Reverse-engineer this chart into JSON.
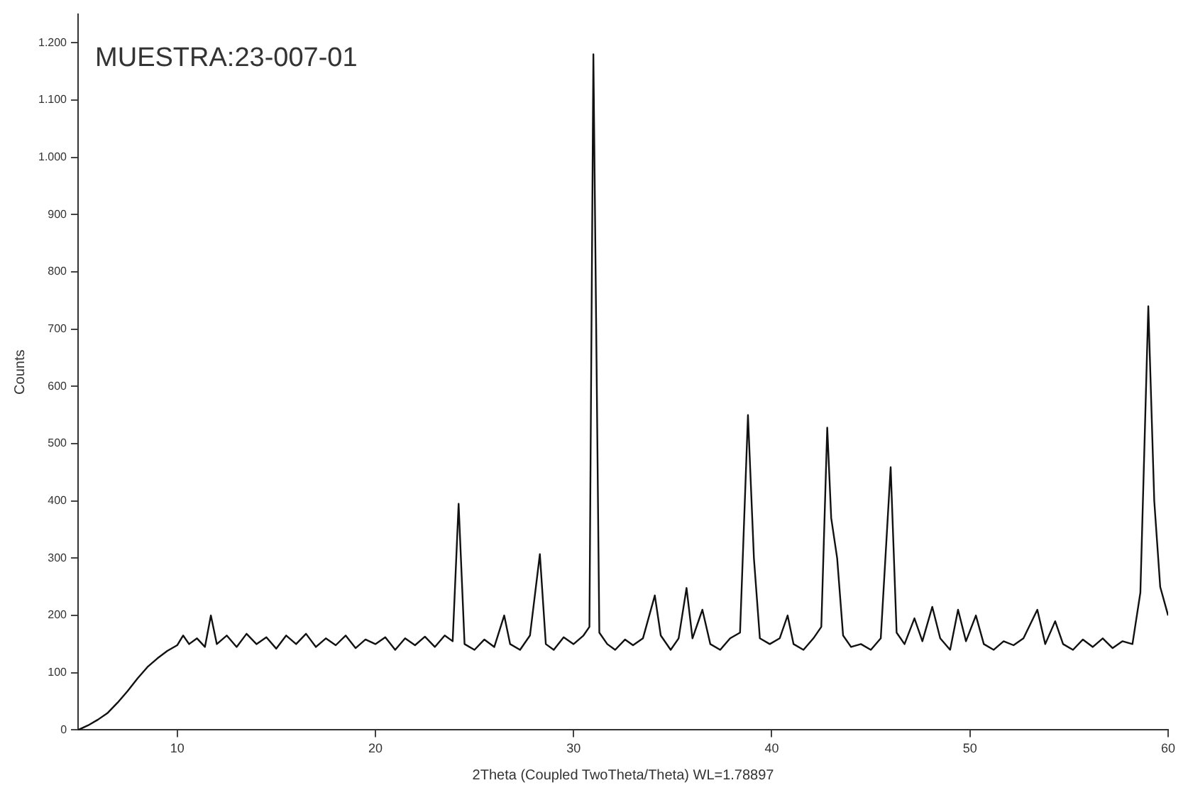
{
  "chart_data": {
    "type": "line",
    "xlabel": "2Theta (Coupled TwoTheta/Theta) WL=1.78897",
    "ylabel": "Counts",
    "annotations": [
      "MUESTRA:23-007-01"
    ],
    "xlim": [
      5,
      60
    ],
    "xticks": [
      10,
      20,
      30,
      40,
      50,
      60
    ],
    "ylim": [
      0,
      1250
    ],
    "yticks": [
      0,
      100,
      200,
      300,
      400,
      500,
      600,
      700,
      800,
      900,
      {
        "value": 1000,
        "label": "1.000"
      },
      {
        "value": 1100,
        "label": "1.100"
      },
      {
        "value": 1200,
        "label": "1.200"
      }
    ],
    "grid": false,
    "legend": false,
    "marker": "none",
    "series": [
      {
        "color": "#111111",
        "x": [
          5.0,
          5.5,
          6.0,
          6.5,
          7.0,
          7.5,
          8.0,
          8.5,
          9.0,
          9.5,
          10.0,
          10.3,
          10.6,
          11.0,
          11.4,
          11.7,
          12.0,
          12.5,
          13.0,
          13.5,
          14.0,
          14.5,
          15.0,
          15.5,
          16.0,
          16.5,
          17.0,
          17.5,
          18.0,
          18.5,
          19.0,
          19.5,
          20.0,
          20.5,
          21.0,
          21.5,
          22.0,
          22.5,
          23.0,
          23.5,
          23.9,
          24.2,
          24.5,
          25.0,
          25.5,
          26.0,
          26.5,
          26.8,
          27.3,
          27.8,
          28.3,
          28.6,
          29.0,
          29.5,
          30.0,
          30.5,
          30.8,
          31.0,
          31.3,
          31.7,
          32.1,
          32.6,
          33.0,
          33.5,
          34.1,
          34.4,
          34.9,
          35.3,
          35.7,
          36.0,
          36.5,
          36.9,
          37.4,
          37.9,
          38.4,
          38.8,
          39.1,
          39.4,
          39.9,
          40.4,
          40.8,
          41.1,
          41.6,
          42.1,
          42.5,
          42.8,
          43.0,
          43.3,
          43.6,
          44.0,
          44.5,
          45.0,
          45.5,
          46.0,
          46.3,
          46.7,
          47.2,
          47.6,
          48.1,
          48.5,
          49.0,
          49.4,
          49.8,
          50.3,
          50.7,
          51.2,
          51.7,
          52.2,
          52.7,
          53.4,
          53.8,
          54.3,
          54.7,
          55.2,
          55.7,
          56.2,
          56.7,
          57.2,
          57.7,
          58.2,
          58.6,
          59.0,
          59.3,
          59.6,
          60.0
        ],
        "values": [
          0,
          8,
          18,
          30,
          48,
          68,
          90,
          110,
          125,
          138,
          148,
          165,
          150,
          160,
          145,
          200,
          150,
          165,
          145,
          168,
          150,
          162,
          142,
          165,
          150,
          168,
          145,
          160,
          148,
          165,
          143,
          158,
          150,
          162,
          140,
          160,
          148,
          163,
          145,
          165,
          155,
          395,
          150,
          140,
          158,
          145,
          200,
          150,
          140,
          165,
          307,
          150,
          140,
          162,
          150,
          165,
          180,
          1180,
          170,
          150,
          140,
          158,
          148,
          160,
          235,
          165,
          140,
          160,
          248,
          160,
          210,
          150,
          140,
          160,
          170,
          550,
          300,
          160,
          150,
          160,
          200,
          150,
          140,
          160,
          180,
          528,
          370,
          300,
          165,
          145,
          150,
          140,
          160,
          459,
          170,
          150,
          195,
          155,
          215,
          160,
          140,
          210,
          155,
          200,
          150,
          140,
          155,
          148,
          160,
          210,
          150,
          190,
          150,
          140,
          158,
          145,
          160,
          143,
          155,
          150,
          240,
          740,
          400,
          250,
          200
        ]
      }
    ]
  }
}
